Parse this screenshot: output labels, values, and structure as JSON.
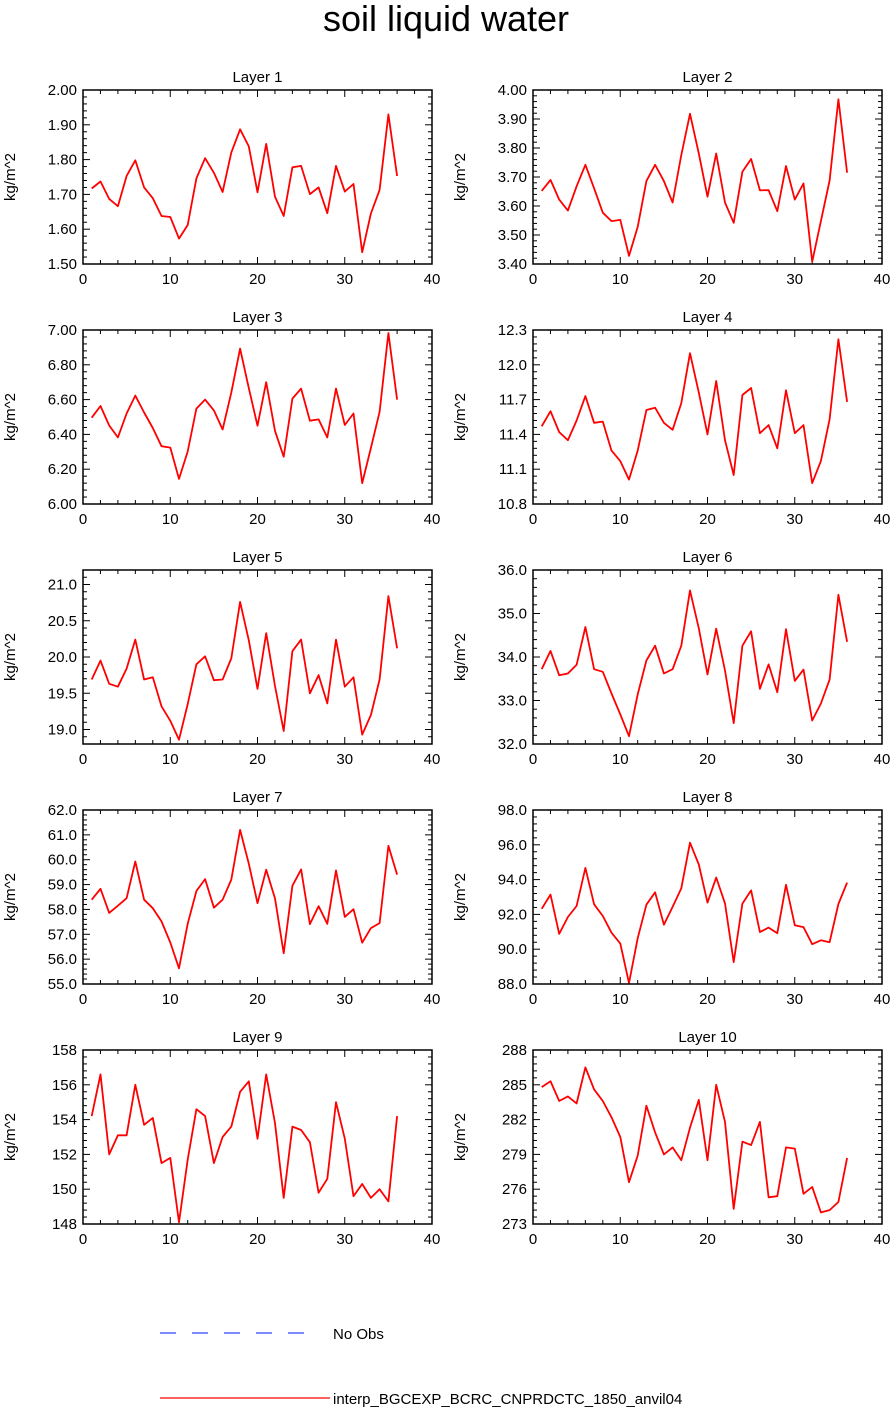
{
  "title": "soil liquid water",
  "legend": {
    "entries": [
      {
        "label": "No Obs",
        "color": "#3344ff",
        "style": "dashed"
      },
      {
        "label": "interp_BGCEXP_BCRC_CNPRDCTC_1850_anvil04",
        "color": "#ff0000",
        "style": "solid"
      }
    ]
  },
  "chart_data": [
    {
      "type": "line",
      "title": "Layer 1",
      "ylabel": "kg/m^2",
      "xlim": [
        0,
        40
      ],
      "xticks": [
        "0",
        "10",
        "20",
        "30",
        "40"
      ],
      "ylim": [
        1.5,
        2.0
      ],
      "yticks": [
        "1.50",
        "1.60",
        "1.70",
        "1.80",
        "1.90",
        "2.00"
      ],
      "series": [
        {
          "color": "#ff0000",
          "x": [
            1,
            2,
            3,
            4,
            5,
            6,
            7,
            8,
            9,
            10,
            11,
            12,
            13,
            14,
            15,
            16,
            17,
            18,
            19,
            20,
            21,
            22,
            23,
            24,
            25,
            26,
            27,
            28,
            29,
            30,
            31,
            32,
            33,
            34,
            35,
            36
          ],
          "y": [
            1.717,
            1.737,
            1.687,
            1.666,
            1.753,
            1.798,
            1.72,
            1.689,
            1.638,
            1.635,
            1.573,
            1.612,
            1.746,
            1.804,
            1.762,
            1.707,
            1.82,
            1.887,
            1.838,
            1.706,
            1.845,
            1.693,
            1.638,
            1.778,
            1.782,
            1.701,
            1.72,
            1.646,
            1.782,
            1.708,
            1.73,
            1.534,
            1.645,
            1.713,
            1.93,
            1.753
          ]
        }
      ]
    },
    {
      "type": "line",
      "title": "Layer 2",
      "ylabel": "kg/m^2",
      "xlim": [
        0,
        40
      ],
      "xticks": [
        "0",
        "10",
        "20",
        "30",
        "40"
      ],
      "ylim": [
        3.4,
        4.0
      ],
      "yticks": [
        "3.40",
        "3.50",
        "3.60",
        "3.70",
        "3.80",
        "3.90",
        "4.00"
      ],
      "series": [
        {
          "color": "#ff0000",
          "x": [
            1,
            2,
            3,
            4,
            5,
            6,
            7,
            8,
            9,
            10,
            11,
            12,
            13,
            14,
            15,
            16,
            17,
            18,
            19,
            20,
            21,
            22,
            23,
            24,
            25,
            26,
            27,
            28,
            29,
            30,
            31,
            32,
            33,
            34,
            35,
            36
          ],
          "y": [
            3.652,
            3.69,
            3.622,
            3.584,
            3.668,
            3.742,
            3.661,
            3.577,
            3.548,
            3.552,
            3.428,
            3.528,
            3.686,
            3.742,
            3.686,
            3.612,
            3.776,
            3.918,
            3.781,
            3.632,
            3.781,
            3.612,
            3.542,
            3.718,
            3.762,
            3.654,
            3.655,
            3.582,
            3.738,
            3.622,
            3.678,
            3.408,
            3.548,
            3.688,
            3.968,
            3.715
          ]
        }
      ]
    },
    {
      "type": "line",
      "title": "Layer 3",
      "ylabel": "kg/m^2",
      "xlim": [
        0,
        40
      ],
      "xticks": [
        "0",
        "10",
        "20",
        "30",
        "40"
      ],
      "ylim": [
        6.0,
        7.0
      ],
      "yticks": [
        "6.00",
        "6.20",
        "6.40",
        "6.60",
        "6.80",
        "7.00"
      ],
      "series": [
        {
          "color": "#ff0000",
          "x": [
            1,
            2,
            3,
            4,
            5,
            6,
            7,
            8,
            9,
            10,
            11,
            12,
            13,
            14,
            15,
            16,
            17,
            18,
            19,
            20,
            21,
            22,
            23,
            24,
            25,
            26,
            27,
            28,
            29,
            30,
            31,
            32,
            33,
            34,
            35,
            36
          ],
          "y": [
            6.496,
            6.563,
            6.451,
            6.383,
            6.52,
            6.623,
            6.526,
            6.437,
            6.332,
            6.324,
            6.144,
            6.302,
            6.548,
            6.6,
            6.538,
            6.428,
            6.64,
            6.893,
            6.666,
            6.45,
            6.7,
            6.42,
            6.272,
            6.606,
            6.663,
            6.479,
            6.486,
            6.382,
            6.664,
            6.454,
            6.52,
            6.12,
            6.322,
            6.53,
            6.983,
            6.6
          ]
        }
      ]
    },
    {
      "type": "line",
      "title": "Layer 4",
      "ylabel": "kg/m^2",
      "xlim": [
        0,
        40
      ],
      "xticks": [
        "0",
        "10",
        "20",
        "30",
        "40"
      ],
      "ylim": [
        10.8,
        12.3
      ],
      "yticks": [
        "10.8",
        "11.1",
        "11.4",
        "11.7",
        "12.0",
        "12.3"
      ],
      "series": [
        {
          "color": "#ff0000",
          "x": [
            1,
            2,
            3,
            4,
            5,
            6,
            7,
            8,
            9,
            10,
            11,
            12,
            13,
            14,
            15,
            16,
            17,
            18,
            19,
            20,
            21,
            22,
            23,
            24,
            25,
            26,
            27,
            28,
            29,
            30,
            31,
            32,
            33,
            34,
            35,
            36
          ],
          "y": [
            11.47,
            11.6,
            11.42,
            11.35,
            11.52,
            11.73,
            11.5,
            11.51,
            11.26,
            11.17,
            11.01,
            11.26,
            11.61,
            11.63,
            11.5,
            11.44,
            11.67,
            12.1,
            11.76,
            11.4,
            11.86,
            11.35,
            11.05,
            11.74,
            11.8,
            11.41,
            11.48,
            11.28,
            11.78,
            11.41,
            11.48,
            10.98,
            11.17,
            11.53,
            12.22,
            11.68
          ]
        }
      ]
    },
    {
      "type": "line",
      "title": "Layer 5",
      "ylabel": "kg/m^2",
      "xlim": [
        0,
        40
      ],
      "xticks": [
        "0",
        "10",
        "20",
        "30",
        "40"
      ],
      "ylim": [
        18.8,
        21.2
      ],
      "yticks": [
        "19.0",
        "19.5",
        "20.0",
        "20.5",
        "21.0"
      ],
      "series": [
        {
          "color": "#ff0000",
          "x": [
            1,
            2,
            3,
            4,
            5,
            6,
            7,
            8,
            9,
            10,
            11,
            12,
            13,
            14,
            15,
            16,
            17,
            18,
            19,
            20,
            21,
            22,
            23,
            24,
            25,
            26,
            27,
            28,
            29,
            30,
            31,
            32,
            33,
            34,
            35,
            36
          ],
          "y": [
            19.69,
            19.95,
            19.63,
            19.59,
            19.84,
            20.24,
            19.69,
            19.72,
            19.32,
            19.12,
            18.86,
            19.35,
            19.9,
            20.01,
            19.68,
            19.69,
            19.98,
            20.76,
            20.23,
            19.56,
            20.33,
            19.6,
            18.98,
            20.08,
            20.24,
            19.5,
            19.75,
            19.36,
            20.24,
            19.59,
            19.72,
            18.93,
            19.2,
            19.69,
            20.84,
            20.12
          ]
        }
      ]
    },
    {
      "type": "line",
      "title": "Layer 6",
      "ylabel": "kg/m^2",
      "xlim": [
        0,
        40
      ],
      "xticks": [
        "0",
        "10",
        "20",
        "30",
        "40"
      ],
      "ylim": [
        32.0,
        36.0
      ],
      "yticks": [
        "32.0",
        "33.0",
        "34.0",
        "35.0",
        "36.0"
      ],
      "series": [
        {
          "color": "#ff0000",
          "x": [
            1,
            2,
            3,
            4,
            5,
            6,
            7,
            8,
            9,
            10,
            11,
            12,
            13,
            14,
            15,
            16,
            17,
            18,
            19,
            20,
            21,
            22,
            23,
            24,
            25,
            26,
            27,
            28,
            29,
            30,
            31,
            32,
            33,
            34,
            35,
            36
          ],
          "y": [
            33.72,
            34.14,
            33.58,
            33.62,
            33.82,
            34.69,
            33.72,
            33.66,
            33.16,
            32.68,
            32.18,
            33.14,
            33.92,
            34.26,
            33.62,
            33.72,
            34.26,
            35.53,
            34.66,
            33.6,
            34.65,
            33.69,
            32.48,
            34.26,
            34.59,
            33.27,
            33.83,
            33.19,
            34.64,
            33.45,
            33.71,
            32.54,
            32.93,
            33.48,
            35.43,
            34.35
          ]
        }
      ]
    },
    {
      "type": "line",
      "title": "Layer 7",
      "ylabel": "kg/m^2",
      "xlim": [
        0,
        40
      ],
      "xticks": [
        "0",
        "10",
        "20",
        "30",
        "40"
      ],
      "ylim": [
        55.0,
        62.0
      ],
      "yticks": [
        "55.0",
        "56.0",
        "57.0",
        "58.0",
        "59.0",
        "60.0",
        "61.0",
        "62.0"
      ],
      "series": [
        {
          "color": "#ff0000",
          "x": [
            1,
            2,
            3,
            4,
            5,
            6,
            7,
            8,
            9,
            10,
            11,
            12,
            13,
            14,
            15,
            16,
            17,
            18,
            19,
            20,
            21,
            22,
            23,
            24,
            25,
            26,
            27,
            28,
            29,
            30,
            31,
            32,
            33,
            34,
            35,
            36
          ],
          "y": [
            58.39,
            58.83,
            57.86,
            58.15,
            58.45,
            59.93,
            58.39,
            58.05,
            57.52,
            56.67,
            55.63,
            57.42,
            58.74,
            59.22,
            58.07,
            58.39,
            59.2,
            61.2,
            59.84,
            58.25,
            59.6,
            58.44,
            56.24,
            58.95,
            59.61,
            57.41,
            58.13,
            57.42,
            59.57,
            57.7,
            58.01,
            56.66,
            57.25,
            57.45,
            60.56,
            59.4
          ]
        }
      ]
    },
    {
      "type": "line",
      "title": "Layer 8",
      "ylabel": "kg/m^2",
      "xlim": [
        0,
        40
      ],
      "xticks": [
        "0",
        "10",
        "20",
        "30",
        "40"
      ],
      "ylim": [
        88.0,
        98.0
      ],
      "yticks": [
        "88.0",
        "90.0",
        "92.0",
        "94.0",
        "96.0",
        "98.0"
      ],
      "series": [
        {
          "color": "#ff0000",
          "x": [
            1,
            2,
            3,
            4,
            5,
            6,
            7,
            8,
            9,
            10,
            11,
            12,
            13,
            14,
            15,
            16,
            17,
            18,
            19,
            20,
            21,
            22,
            23,
            24,
            25,
            26,
            27,
            28,
            29,
            30,
            31,
            32,
            33,
            34,
            35,
            36
          ],
          "y": [
            92.32,
            93.14,
            90.88,
            91.85,
            92.48,
            94.67,
            92.58,
            91.91,
            90.95,
            90.32,
            88.06,
            90.63,
            92.56,
            93.27,
            91.41,
            92.43,
            93.5,
            96.12,
            94.87,
            92.68,
            94.12,
            92.63,
            89.26,
            92.62,
            93.38,
            90.98,
            91.24,
            90.92,
            93.7,
            91.38,
            91.27,
            90.29,
            90.51,
            90.4,
            92.6,
            93.83
          ]
        }
      ]
    },
    {
      "type": "line",
      "title": "Layer 9",
      "ylabel": "kg/m^2",
      "xlim": [
        0,
        40
      ],
      "xticks": [
        "0",
        "10",
        "20",
        "30",
        "40"
      ],
      "ylim": [
        148,
        158
      ],
      "yticks": [
        "148",
        "150",
        "152",
        "154",
        "156",
        "158"
      ],
      "series": [
        {
          "color": "#ff0000",
          "x": [
            1,
            2,
            3,
            4,
            5,
            6,
            7,
            8,
            9,
            10,
            11,
            12,
            13,
            14,
            15,
            16,
            17,
            18,
            19,
            20,
            21,
            22,
            23,
            24,
            25,
            26,
            27,
            28,
            29,
            30,
            31,
            32,
            33,
            34,
            35,
            36
          ],
          "y": [
            154.2,
            156.6,
            152.0,
            153.1,
            153.1,
            156.0,
            153.7,
            154.1,
            151.5,
            151.8,
            148.1,
            151.7,
            154.6,
            154.2,
            151.5,
            153.0,
            153.6,
            155.6,
            156.2,
            152.9,
            156.6,
            153.8,
            149.5,
            153.6,
            153.4,
            152.7,
            149.8,
            150.6,
            155.0,
            152.9,
            149.6,
            150.3,
            149.5,
            150.0,
            149.3,
            154.2
          ]
        }
      ]
    },
    {
      "type": "line",
      "title": "Layer 10",
      "ylabel": "kg/m^2",
      "xlim": [
        0,
        40
      ],
      "xticks": [
        "0",
        "10",
        "20",
        "30",
        "40"
      ],
      "ylim": [
        273,
        288
      ],
      "yticks": [
        "273",
        "276",
        "279",
        "282",
        "285",
        "288"
      ],
      "series": [
        {
          "color": "#ff0000",
          "x": [
            1,
            2,
            3,
            4,
            5,
            6,
            7,
            8,
            9,
            10,
            11,
            12,
            13,
            14,
            15,
            16,
            17,
            18,
            19,
            20,
            21,
            22,
            23,
            24,
            25,
            26,
            27,
            28,
            29,
            30,
            31,
            32,
            33,
            34,
            35,
            36
          ],
          "y": [
            284.8,
            285.3,
            283.6,
            284.0,
            283.4,
            286.5,
            284.6,
            283.6,
            282.2,
            280.5,
            276.6,
            278.9,
            283.2,
            280.9,
            279.0,
            279.6,
            278.5,
            281.3,
            283.7,
            278.5,
            285.0,
            281.8,
            274.3,
            280.1,
            279.8,
            281.8,
            275.3,
            275.4,
            279.6,
            279.5,
            275.6,
            276.2,
            274.0,
            274.2,
            274.9,
            278.7
          ]
        }
      ]
    }
  ]
}
